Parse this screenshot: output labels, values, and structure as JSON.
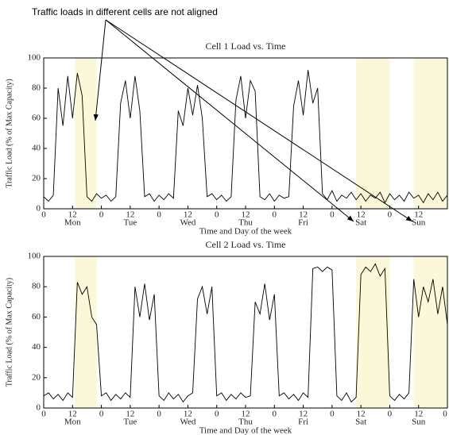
{
  "annotation": "Traffic loads in different cells are not aligned",
  "chart_data": [
    {
      "type": "line",
      "title": "Cell 1 Load vs. Time",
      "xlabel": "Time and Day of the week",
      "ylabel": "Traffic Load (% of Max Capacity)",
      "color": "#000000",
      "highlight_color": "#fbf8d9",
      "highlights": [
        [
          13,
          22
        ],
        [
          130,
          144
        ],
        [
          154,
          168
        ]
      ],
      "xlim": [
        0,
        168
      ],
      "ylim": [
        0,
        100
      ],
      "xticks": [
        0,
        12,
        {
          "value": 24,
          "label": "0"
        },
        {
          "value": 36,
          "label": "12"
        },
        {
          "value": 48,
          "label": "0"
        },
        {
          "value": 60,
          "label": "12"
        },
        {
          "value": 72,
          "label": "0"
        },
        {
          "value": 84,
          "label": "12"
        },
        {
          "value": 96,
          "label": "0"
        },
        {
          "value": 108,
          "label": "12"
        },
        {
          "value": 120,
          "label": "0"
        },
        {
          "value": 132,
          "label": "12"
        },
        {
          "value": 144,
          "label": "0"
        },
        {
          "value": 156,
          "label": "12"
        }
      ],
      "day_ticks": [
        {
          "value": 12,
          "label": "Mon"
        },
        {
          "value": 36,
          "label": "Tue"
        },
        {
          "value": 60,
          "label": "Wed"
        },
        {
          "value": 84,
          "label": "Thu"
        },
        {
          "value": 108,
          "label": "Fri"
        },
        {
          "value": 132,
          "label": "Sat"
        },
        {
          "value": 156,
          "label": "Sun"
        }
      ],
      "yticks": [
        0,
        20,
        40,
        60,
        80,
        100
      ],
      "x": [
        0,
        2,
        4,
        6,
        8,
        10,
        12,
        14,
        16,
        18,
        20,
        22,
        24,
        26,
        28,
        30,
        32,
        34,
        36,
        38,
        40,
        42,
        44,
        46,
        48,
        50,
        52,
        54,
        56,
        58,
        60,
        62,
        64,
        66,
        68,
        70,
        72,
        74,
        76,
        78,
        80,
        82,
        84,
        86,
        88,
        90,
        92,
        94,
        96,
        98,
        100,
        102,
        104,
        106,
        108,
        110,
        112,
        114,
        116,
        118,
        120,
        122,
        124,
        126,
        128,
        130,
        132,
        134,
        136,
        138,
        140,
        142,
        144,
        146,
        148,
        150,
        152,
        154,
        156,
        158,
        160,
        162,
        164,
        166,
        168
      ],
      "values": [
        8,
        5,
        9,
        80,
        55,
        88,
        60,
        90,
        75,
        8,
        5,
        10,
        7,
        9,
        5,
        8,
        70,
        85,
        60,
        88,
        65,
        8,
        10,
        5,
        9,
        6,
        10,
        7,
        65,
        55,
        80,
        62,
        82,
        60,
        8,
        10,
        6,
        9,
        5,
        8,
        72,
        88,
        60,
        85,
        78,
        8,
        6,
        10,
        5,
        9,
        7,
        8,
        68,
        85,
        62,
        92,
        70,
        80,
        10,
        6,
        12,
        5,
        9,
        7,
        11,
        6,
        10,
        5,
        9,
        7,
        11,
        4,
        10,
        6,
        9,
        5,
        11,
        7,
        9,
        4,
        10,
        6,
        11,
        5,
        9
      ]
    },
    {
      "type": "line",
      "title": "Cell 2 Load vs. Time",
      "xlabel": "Time and Day of the week",
      "ylabel": "Traffic Load (% of Max Capacity)",
      "color": "#000000",
      "highlight_color": "#fbf8d9",
      "highlights": [
        [
          13,
          22
        ],
        [
          130,
          144
        ],
        [
          154,
          168
        ]
      ],
      "xlim": [
        0,
        168
      ],
      "ylim": [
        0,
        100
      ],
      "xticks": [
        0,
        12,
        {
          "value": 24,
          "label": "0"
        },
        {
          "value": 36,
          "label": "12"
        },
        {
          "value": 48,
          "label": "0"
        },
        {
          "value": 60,
          "label": "12"
        },
        {
          "value": 72,
          "label": "0"
        },
        {
          "value": 84,
          "label": "12"
        },
        {
          "value": 96,
          "label": "0"
        },
        {
          "value": 108,
          "label": "12"
        },
        {
          "value": 120,
          "label": "0"
        },
        {
          "value": 132,
          "label": "12"
        },
        {
          "value": 144,
          "label": "0"
        },
        {
          "value": 156,
          "label": "12"
        },
        {
          "value": 168,
          "label": "0"
        }
      ],
      "day_ticks": [
        {
          "value": 12,
          "label": "Mon"
        },
        {
          "value": 36,
          "label": "Tue"
        },
        {
          "value": 60,
          "label": "Wed"
        },
        {
          "value": 84,
          "label": "Thu"
        },
        {
          "value": 108,
          "label": "Fri"
        },
        {
          "value": 132,
          "label": "Sat"
        },
        {
          "value": 156,
          "label": "Sun"
        }
      ],
      "yticks": [
        0,
        20,
        40,
        60,
        80,
        100
      ],
      "x": [
        0,
        2,
        4,
        6,
        8,
        10,
        12,
        14,
        16,
        18,
        20,
        22,
        24,
        26,
        28,
        30,
        32,
        34,
        36,
        38,
        40,
        42,
        44,
        46,
        48,
        50,
        52,
        54,
        56,
        58,
        60,
        62,
        64,
        66,
        68,
        70,
        72,
        74,
        76,
        78,
        80,
        82,
        84,
        86,
        88,
        90,
        92,
        94,
        96,
        98,
        100,
        102,
        104,
        106,
        108,
        110,
        112,
        114,
        116,
        118,
        120,
        122,
        124,
        126,
        128,
        130,
        132,
        134,
        136,
        138,
        140,
        142,
        144,
        146,
        148,
        150,
        152,
        154,
        156,
        158,
        160,
        162,
        164,
        166,
        168
      ],
      "values": [
        8,
        10,
        6,
        9,
        5,
        10,
        7,
        83,
        75,
        80,
        60,
        55,
        8,
        10,
        5,
        9,
        6,
        10,
        7,
        80,
        60,
        82,
        58,
        75,
        8,
        5,
        10,
        6,
        9,
        4,
        8,
        10,
        72,
        80,
        62,
        80,
        8,
        10,
        5,
        9,
        6,
        10,
        7,
        8,
        70,
        62,
        82,
        58,
        75,
        8,
        10,
        6,
        9,
        5,
        10,
        7,
        92,
        93,
        90,
        93,
        91,
        8,
        5,
        10,
        4,
        7,
        88,
        93,
        90,
        95,
        87,
        92,
        8,
        5,
        9,
        6,
        10,
        85,
        60,
        80,
        70,
        85,
        62,
        80,
        55
      ]
    }
  ]
}
